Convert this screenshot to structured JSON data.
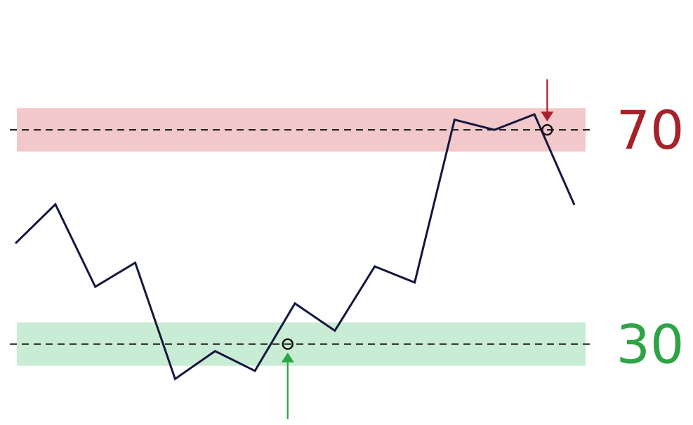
{
  "chart_data": {
    "type": "line",
    "title": "",
    "xlabel": "",
    "ylabel": "",
    "grid": false,
    "legend": "none",
    "ylim": [
      20,
      86
    ],
    "series": [
      {
        "values": [
          48.8,
          56.1,
          40.7,
          45.2,
          23.5,
          28.7,
          25.0,
          37.6,
          32.5,
          44.5,
          41.5,
          71.9,
          70.0,
          72.9,
          56.0
        ]
      }
    ],
    "reference_lines": [
      {
        "value": 70,
        "label": "70",
        "line_color": "#111111",
        "zone_color": "#f2c8ca",
        "label_color": "#a5222a",
        "marker_color": "#a5222a",
        "crossing_index": 13.32,
        "arrow_direction": "down"
      },
      {
        "value": 30,
        "label": "30",
        "line_color": "#111111",
        "zone_color": "#c9ecd4",
        "label_color": "#2ea444",
        "marker_color": "#2ea444",
        "crossing_index": 6.82,
        "arrow_direction": "up"
      }
    ],
    "line_color": "#15163d"
  }
}
